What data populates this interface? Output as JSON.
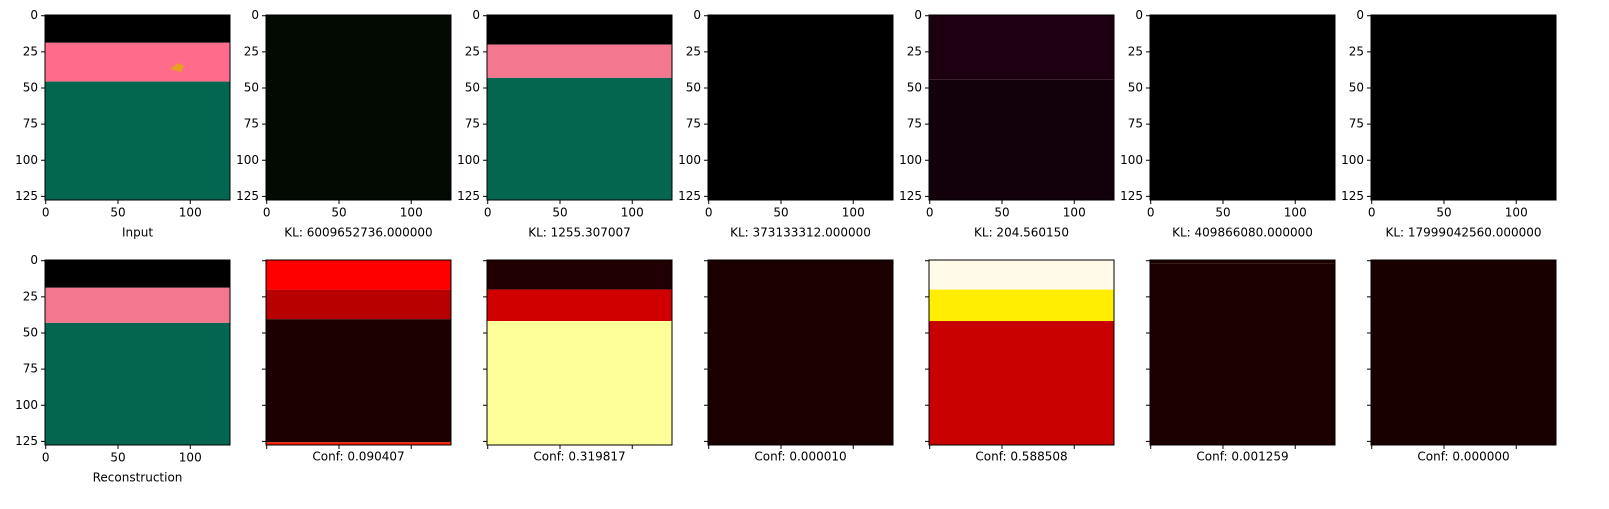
{
  "figure": {
    "xlim": [
      -0.5,
      127.5
    ],
    "ylim": [
      -0.5,
      127.5
    ],
    "xticks": [
      0,
      50,
      100
    ],
    "yticks": [
      0,
      25,
      50,
      75,
      100,
      125
    ],
    "top_row": [
      {
        "label": "Input"
      },
      {
        "label": "KL: 6009652736.000000"
      },
      {
        "label": "KL: 1255.307007"
      },
      {
        "label": "KL: 373133312.000000"
      },
      {
        "label": "KL: 204.560150"
      },
      {
        "label": "KL: 409866080.000000"
      },
      {
        "label": "KL: 17999042560.000000"
      }
    ],
    "bottom_row": [
      {
        "label": "Reconstruction"
      },
      {
        "label": "Conf: 0.090407"
      },
      {
        "label": "Conf: 0.319817"
      },
      {
        "label": "Conf: 0.000010"
      },
      {
        "label": "Conf: 0.588508"
      },
      {
        "label": "Conf: 0.001259"
      },
      {
        "label": "Conf: 0.000000"
      }
    ]
  }
}
